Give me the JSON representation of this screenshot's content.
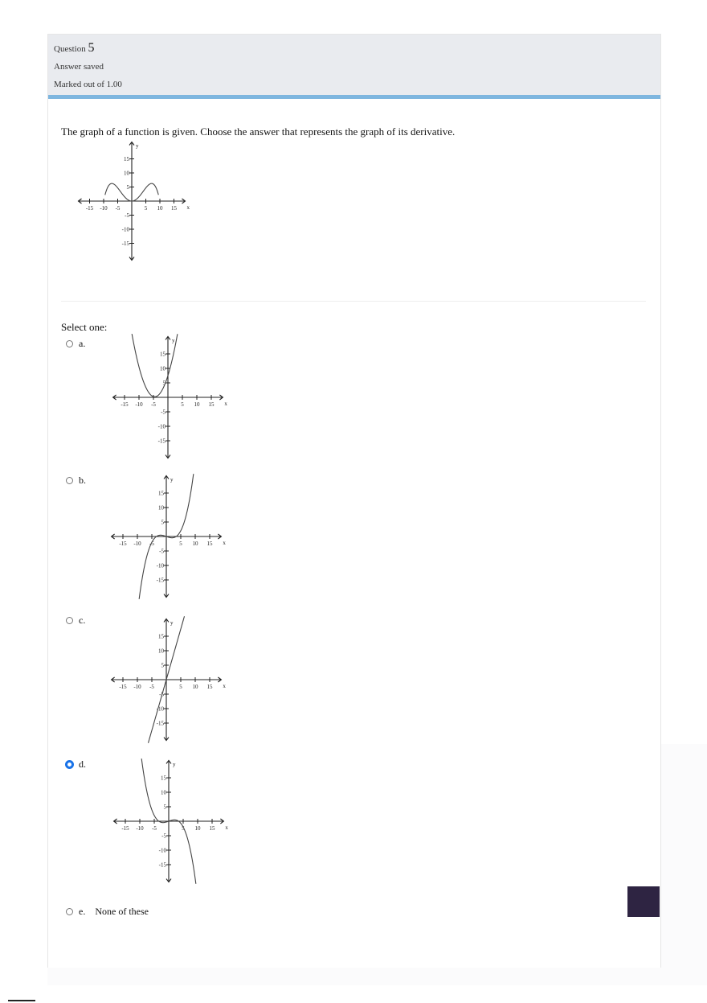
{
  "question": {
    "label": "Question",
    "number": "5",
    "state": "Answer saved",
    "grade": "Marked out of 1.00",
    "text": "The graph of a function is given. Choose the answer that represents the graph of its derivative.",
    "prompt": "Select one:"
  },
  "graph_labels": {
    "y": "y",
    "x": "x",
    "y_ticks": [
      "15",
      "10",
      "5",
      "-5",
      "-10",
      "-15"
    ],
    "x_ticks": [
      "-15",
      "-10",
      "-5",
      "5",
      "10",
      "15"
    ]
  },
  "options": [
    {
      "letter": "a.",
      "selected": false
    },
    {
      "letter": "b.",
      "selected": false
    },
    {
      "letter": "c.",
      "selected": false
    },
    {
      "letter": "d.",
      "selected": true
    },
    {
      "letter": "e.",
      "text": "None of these",
      "selected": false
    }
  ],
  "colors": {
    "header_bg": "#e9ebef",
    "accent_bar": "#7eb6df",
    "radio_selected": "#1a73e8",
    "corner_button": "#2e2442"
  }
}
